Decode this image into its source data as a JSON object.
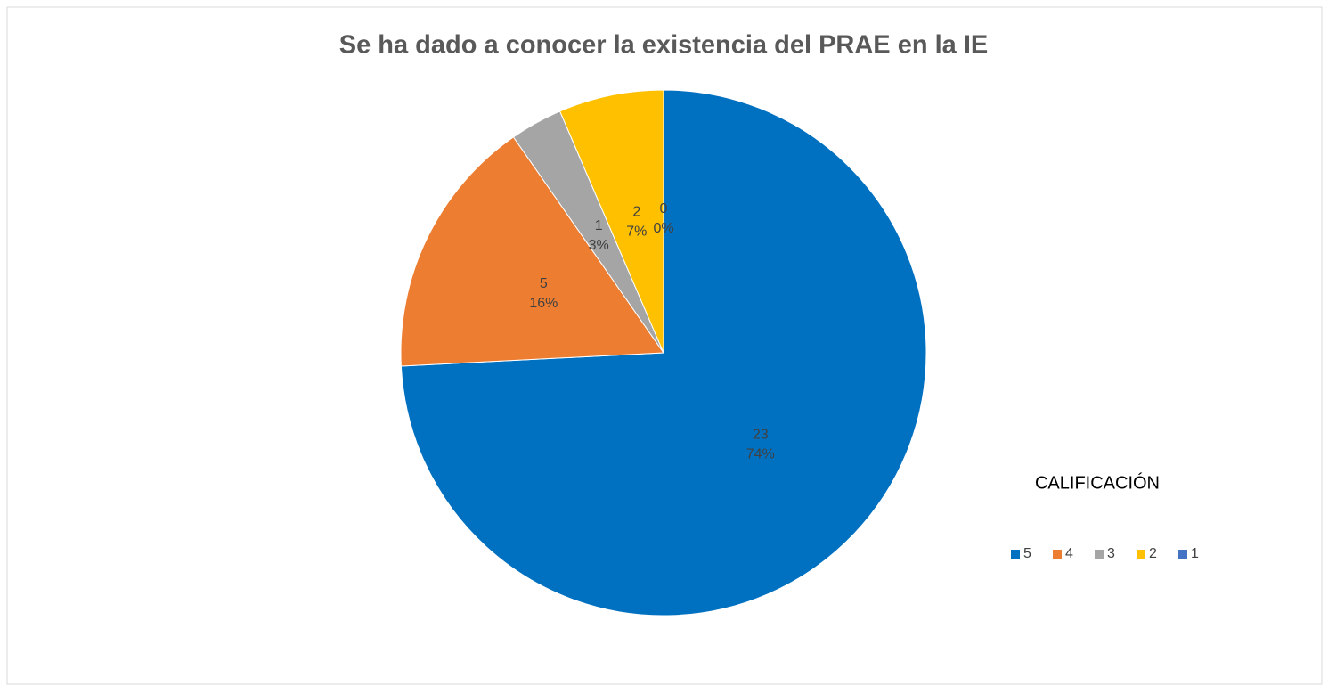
{
  "chart_data": {
    "type": "pie",
    "title": "Se ha dado a conocer la existencia del PRAE en la IE",
    "legend_title": "CALIFICACIÓN",
    "categories": [
      "5",
      "4",
      "3",
      "2",
      "1"
    ],
    "values": [
      23,
      5,
      1,
      2,
      0
    ],
    "percent_labels": [
      "74%",
      "16%",
      "3%",
      "7%",
      "0%"
    ],
    "colors": [
      "#0070c0",
      "#ed7d31",
      "#a5a5a5",
      "#ffc000",
      "#4472c4"
    ],
    "legend": "right"
  }
}
